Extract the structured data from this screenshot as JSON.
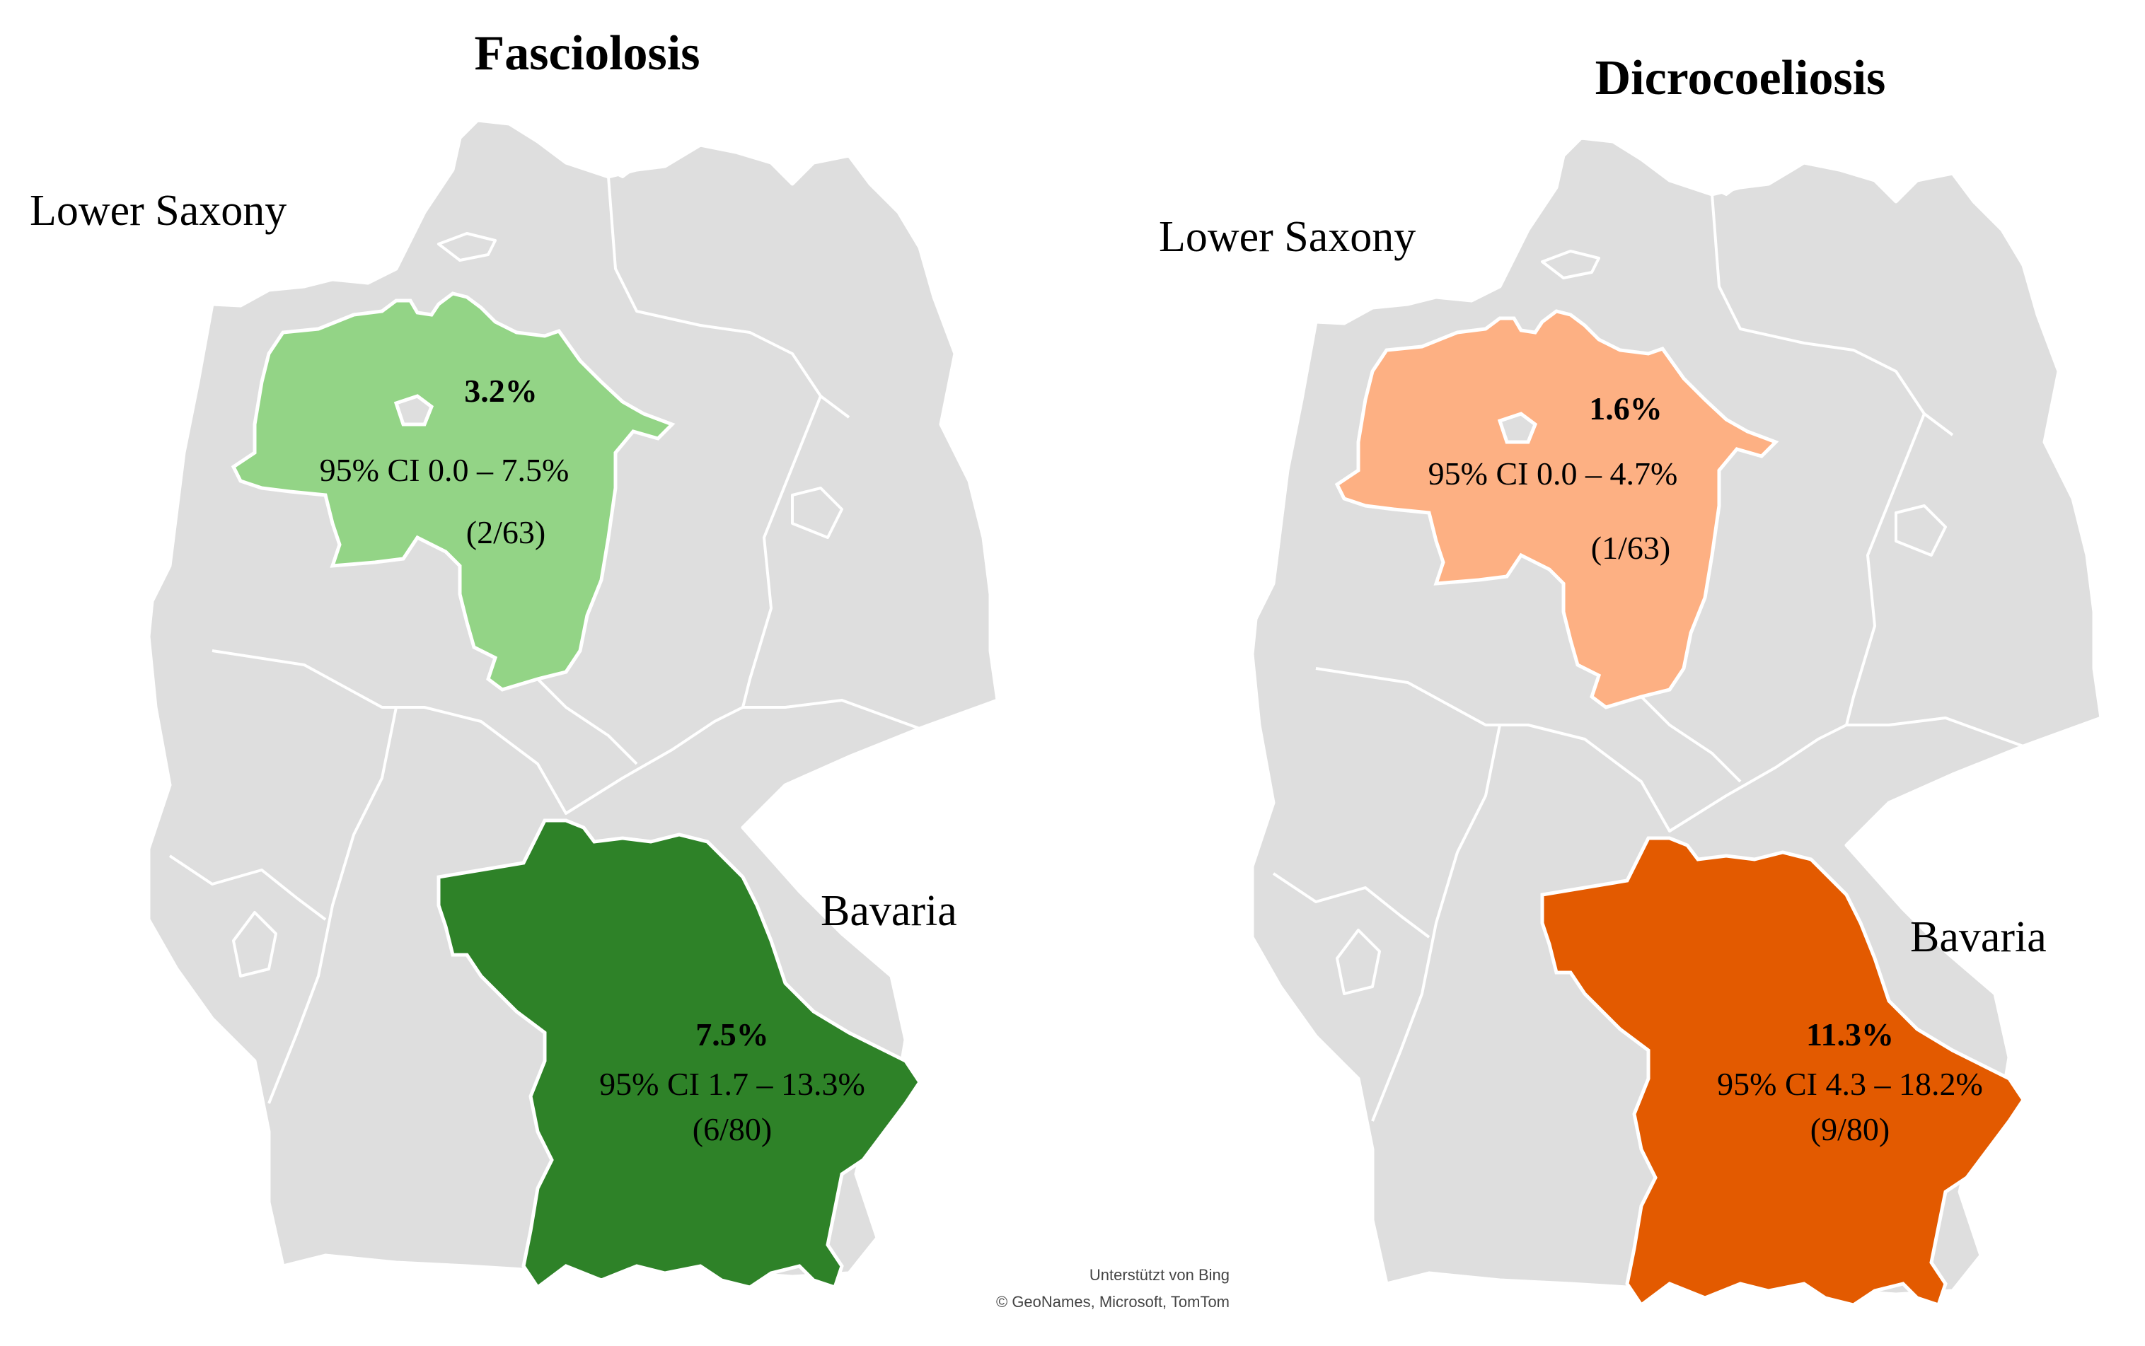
{
  "panels": [
    {
      "title": "Fasciolosis",
      "colors": {
        "lower_saxony": "#93d486",
        "bavaria": "#2e8228"
      },
      "lower_saxony": {
        "name": "Lower Saxony",
        "percent": "3.2%",
        "ci": "95% CI 0.0 – 7.5%",
        "count": "(2/63)"
      },
      "bavaria": {
        "name": "Bavaria",
        "percent": "7.5%",
        "ci": "95% CI 1.7 – 13.3%",
        "count": "(6/80)"
      }
    },
    {
      "title": "Dicrocoeliosis",
      "colors": {
        "lower_saxony": "#fdb083",
        "bavaria": "#e35a00"
      },
      "lower_saxony": {
        "name": "Lower Saxony",
        "percent": "1.6%",
        "ci": "95% CI 0.0 – 4.7%",
        "count": "(1/63)"
      },
      "bavaria": {
        "name": "Bavaria",
        "percent": "11.3%",
        "ci": "95% CI 4.3 – 18.2%",
        "count": "(9/80)"
      }
    }
  ],
  "map_colors": {
    "other_states": "#dedede",
    "borders": "#ffffff"
  },
  "attribution": {
    "line1": "Unterstützt von Bing",
    "line2": "© GeoNames, Microsoft, TomTom"
  }
}
